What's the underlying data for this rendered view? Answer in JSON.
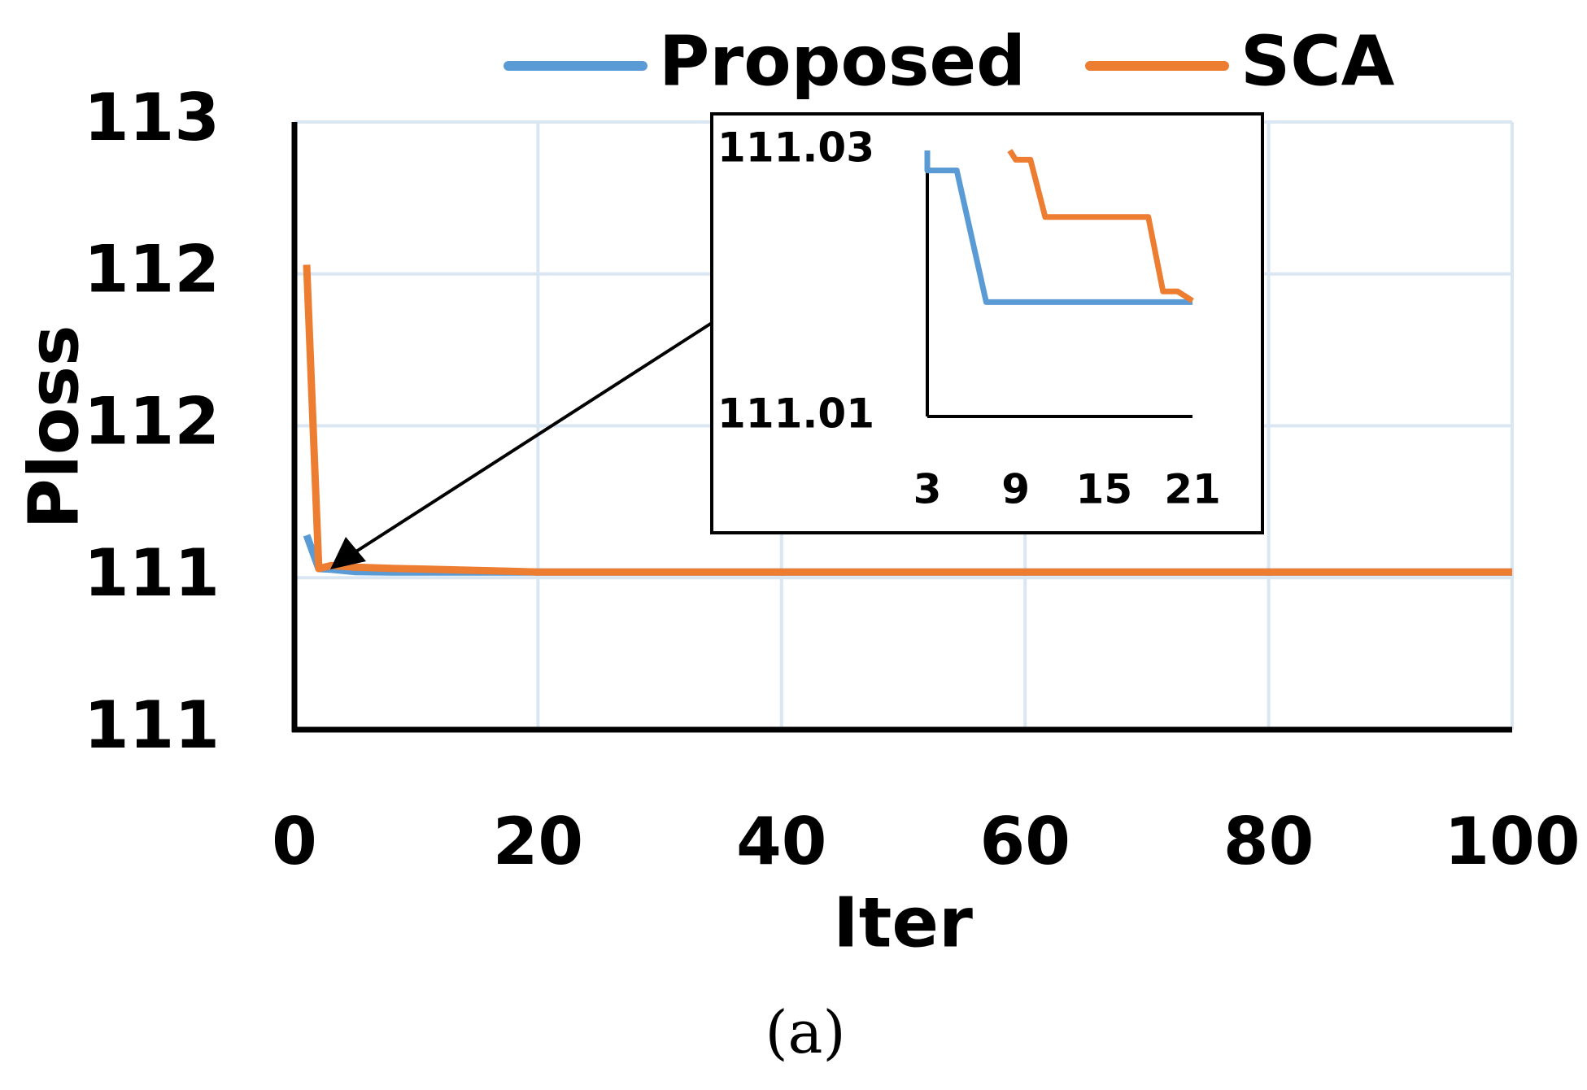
{
  "chart_data": [
    {
      "type": "line",
      "x": [
        1,
        2,
        3,
        5,
        8,
        10,
        20,
        100
      ],
      "series": [
        {
          "name": "Proposed",
          "color": "#5b9bd5",
          "values": [
            111.14,
            111.03,
            111.028,
            111.02,
            111.019,
            111.019,
            111.019,
            111.019
          ]
        },
        {
          "name": "SCA",
          "color": "#ed7d31",
          "values": [
            112.03,
            111.03,
            111.04,
            111.035,
            111.031,
            111.029,
            111.019,
            111.019
          ]
        }
      ],
      "xlabel": "Iter",
      "ylabel": "Ploss",
      "xlim": [
        0,
        100
      ],
      "xticks": [
        0,
        20,
        40,
        60,
        80,
        100
      ],
      "ylim": [
        110.5,
        112.5
      ],
      "yticks": [
        {
          "value": 110.5,
          "label": "111"
        },
        {
          "value": 111,
          "label": "111"
        },
        {
          "value": 111.5,
          "label": "112"
        },
        {
          "value": 112,
          "label": "112"
        },
        {
          "value": 112.5,
          "label": "113"
        }
      ],
      "grid": true,
      "legend": "top",
      "caption": "(a)"
    },
    {
      "type": "line",
      "series": [
        {
          "name": "Proposed",
          "color": "#5b9bd5",
          "x": [
            3,
            3,
            5,
            7,
            21
          ],
          "values": [
            111.03,
            111.0285,
            111.0285,
            111.0186,
            111.0186
          ]
        },
        {
          "name": "SCA",
          "color": "#ed7d31",
          "x": [
            8.6,
            9,
            10,
            11,
            18,
            19,
            20,
            21
          ],
          "values": [
            111.03,
            111.0293,
            111.0293,
            111.025,
            111.025,
            111.0194,
            111.0194,
            111.0187
          ]
        }
      ],
      "xlim": [
        3,
        21
      ],
      "xticks": [
        3,
        9,
        15,
        21
      ],
      "ylim": [
        111.01,
        111.03
      ],
      "yticks": [
        111.01,
        111.03
      ]
    }
  ]
}
